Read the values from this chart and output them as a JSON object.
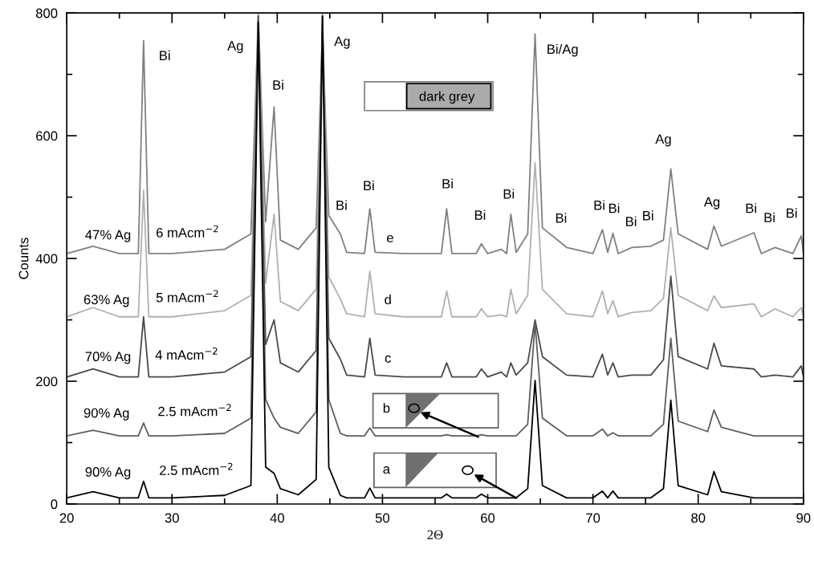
{
  "chart_data": {
    "type": "line",
    "xlabel": "2Θ",
    "ylabel": "Counts",
    "xlim": [
      20,
      90
    ],
    "ylim": [
      0,
      800
    ],
    "xticks": [
      20,
      {
        "value": 25,
        "label": null
      },
      30,
      {
        "value": 35,
        "label": null
      },
      40,
      {
        "value": 45,
        "label": null
      },
      50,
      {
        "value": 55,
        "label": null
      },
      60,
      {
        "value": 65,
        "label": null
      },
      70,
      {
        "value": 75,
        "label": null
      },
      80,
      {
        "value": 85,
        "label": null
      },
      90
    ],
    "yticks": [
      0,
      {
        "value": 100,
        "label": null
      },
      200,
      {
        "value": 300,
        "label": null
      },
      400,
      {
        "value": 500,
        "label": null
      },
      600,
      {
        "value": 700,
        "label": null
      },
      800
    ],
    "grid": false,
    "legend": false,
    "marker": "none",
    "line_style": "solid",
    "x": [
      20,
      22.5,
      25,
      26.8,
      27.3,
      27.8,
      30,
      35,
      37.5,
      38.2,
      38.9,
      39.7,
      40.3,
      42,
      43.7,
      44.3,
      44.9,
      46,
      46.6,
      48.3,
      48.8,
      49.3,
      52,
      55.6,
      56.1,
      56.6,
      58.9,
      59.4,
      60,
      61.3,
      61.8,
      62.2,
      62.7,
      63.8,
      64.5,
      65.2,
      67.5,
      70,
      70.9,
      71.4,
      71.9,
      72.4,
      73.7,
      75.5,
      76.7,
      77.4,
      78.1,
      80.9,
      81.5,
      82.2,
      85.3,
      86,
      87.3,
      89,
      89.8,
      90
    ],
    "series": [
      {
        "color": "#808080",
        "values": [
          408,
          420,
          408,
          408,
          755,
          408,
          408,
          415,
          440,
          795,
          460,
          647,
          430,
          415,
          450,
          770,
          470,
          440,
          410,
          408,
          481,
          410,
          408,
          408,
          481,
          408,
          408,
          424,
          408,
          415,
          408,
          472,
          410,
          440,
          766,
          450,
          418,
          408,
          447,
          410,
          441,
          408,
          418,
          420,
          430,
          546,
          440,
          415,
          453,
          420,
          442,
          408,
          418,
          408,
          437,
          408
        ]
      },
      {
        "color": "#b0b0b0",
        "values": [
          305,
          320,
          305,
          305,
          511,
          305,
          305,
          315,
          340,
          800,
          360,
          472,
          330,
          315,
          350,
          800,
          370,
          334,
          310,
          305,
          379,
          310,
          305,
          305,
          347,
          305,
          305,
          318,
          305,
          308,
          305,
          350,
          310,
          340,
          556,
          350,
          310,
          305,
          347,
          310,
          331,
          305,
          312,
          315,
          335,
          450,
          340,
          315,
          339,
          320,
          326,
          305,
          318,
          305,
          320,
          305
        ]
      },
      {
        "color": "#4a4a4a",
        "values": [
          207,
          220,
          207,
          207,
          305,
          207,
          207,
          215,
          240,
          795,
          260,
          300,
          230,
          215,
          250,
          795,
          270,
          236,
          210,
          207,
          270,
          210,
          207,
          207,
          230,
          207,
          207,
          220,
          207,
          215,
          207,
          230,
          210,
          230,
          300,
          240,
          210,
          207,
          244,
          210,
          230,
          207,
          210,
          210,
          235,
          371,
          240,
          220,
          262,
          225,
          220,
          207,
          210,
          207,
          225,
          207
        ]
      },
      {
        "color": "#5e5e5e",
        "values": [
          111,
          120,
          111,
          111,
          132,
          111,
          111,
          115,
          140,
          790,
          170,
          140,
          125,
          115,
          150,
          790,
          170,
          115,
          111,
          111,
          124,
          111,
          111,
          111,
          113,
          111,
          111,
          113,
          111,
          111,
          111,
          111,
          111,
          130,
          295,
          140,
          111,
          111,
          122,
          111,
          116,
          111,
          111,
          111,
          130,
          270,
          135,
          118,
          153,
          125,
          111,
          111,
          111,
          111,
          111,
          111
        ]
      },
      {
        "color": "#000000",
        "values": [
          10,
          20,
          10,
          10,
          37,
          10,
          10,
          14,
          30,
          785,
          60,
          50,
          25,
          15,
          40,
          795,
          60,
          14,
          10,
          10,
          26,
          10,
          10,
          10,
          16,
          10,
          10,
          16,
          10,
          10,
          10,
          10,
          10,
          25,
          201,
          30,
          10,
          10,
          21,
          10,
          21,
          10,
          10,
          10,
          25,
          169,
          30,
          15,
          53,
          20,
          10,
          10,
          10,
          10,
          10,
          10
        ]
      }
    ],
    "annotations": [
      "Bi",
      "Ag",
      "Bi",
      "Ag",
      "Bi/Ag",
      "dark grey",
      "Bi",
      "Bi",
      "Bi",
      "Bi",
      "Bi",
      "Bi",
      "Bi",
      "Bi",
      "Bi",
      "Bi",
      "Ag",
      "Ag",
      "Bi",
      "Bi",
      "Bi",
      "e",
      "d",
      "c",
      "b",
      "a",
      "47% Ag",
      "6 mAcm$^{−2}$",
      "63% Ag",
      "5 mAcm$^{−2}$",
      "70% Ag",
      "4 mAcm$^{−2}$",
      "90% Ag",
      "2.5 mAcm$^{−2}$",
      "90% Ag",
      "2.5 mAcm$^{−2}$"
    ]
  }
}
